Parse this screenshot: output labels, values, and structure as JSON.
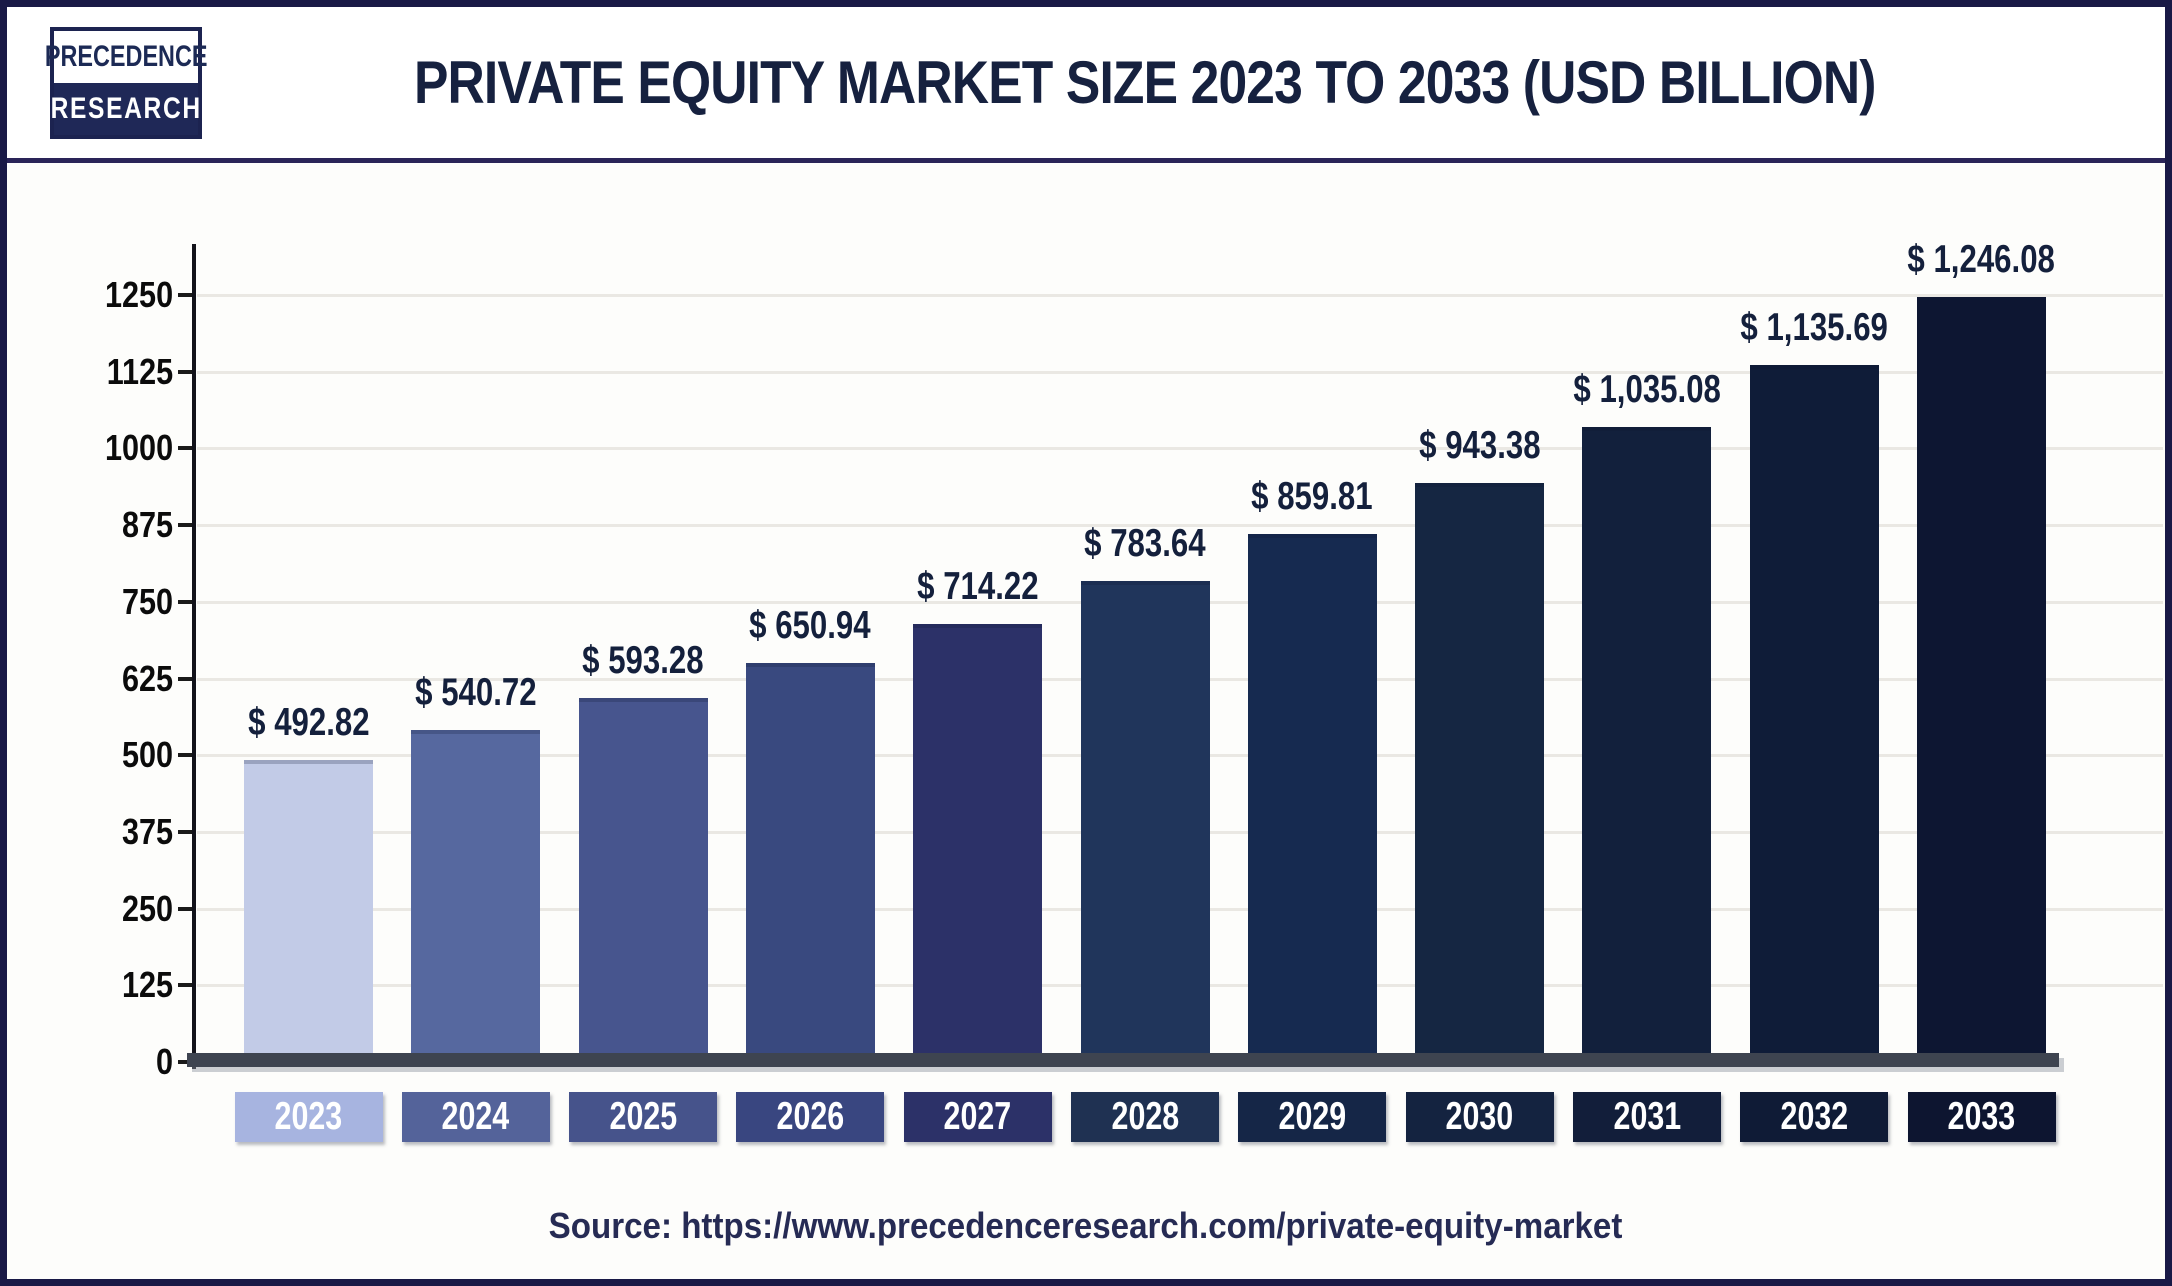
{
  "header": {
    "logo_line1": "PRECEDENCE",
    "logo_line2": "RESEARCH",
    "title": "PRIVATE EQUITY MARKET SIZE 2023 TO 2033 (USD BILLION)"
  },
  "chart_data": {
    "type": "bar",
    "title": "PRIVATE EQUITY MARKET SIZE 2023 TO 2033 (USD BILLION)",
    "xlabel": "",
    "ylabel": "",
    "unit": "USD Billion",
    "categories": [
      "2023",
      "2024",
      "2025",
      "2026",
      "2027",
      "2028",
      "2029",
      "2030",
      "2031",
      "2032",
      "2033"
    ],
    "values": [
      492.82,
      540.72,
      593.28,
      650.94,
      714.22,
      783.64,
      859.81,
      943.38,
      1035.08,
      1135.69,
      1246.08
    ],
    "value_labels": [
      "$ 492.82",
      "$ 540.72",
      "$ 593.28",
      "$ 650.94",
      "$ 714.22",
      "$ 783.64",
      "$ 859.81",
      "$ 943.38",
      "$ 1,035.08",
      "$ 1,135.69",
      "$ 1,246.08"
    ],
    "bar_colors": [
      "#c2cbe7",
      "#56689f",
      "#47558e",
      "#39497f",
      "#2c3168",
      "#20355b",
      "#162a50",
      "#152642",
      "#12203c",
      "#0f1c38",
      "#0d1632"
    ],
    "year_box_colors": [
      "#a7b4e0",
      "#54639a",
      "#46538b",
      "#394680",
      "#2c3168",
      "#1f3152",
      "#152647",
      "#142340",
      "#121e3a",
      "#0f1b36",
      "#0d1530"
    ],
    "ylim": [
      0,
      1250
    ],
    "yticks": [
      0,
      125,
      250,
      375,
      500,
      625,
      750,
      875,
      1000,
      1125,
      1250
    ],
    "grid": true,
    "legend": "none"
  },
  "colors": {
    "frame_border": "#191946",
    "header_rule": "#2a2458",
    "title_text": "#16213f",
    "value_text": "#14203c",
    "axis": "#12121a",
    "baseline": "#3e4450",
    "gridline": "#eae8e3",
    "source_text": "#262b54"
  },
  "source": {
    "text": "Source: https://www.precedenceresearch.com/private-equity-market"
  }
}
